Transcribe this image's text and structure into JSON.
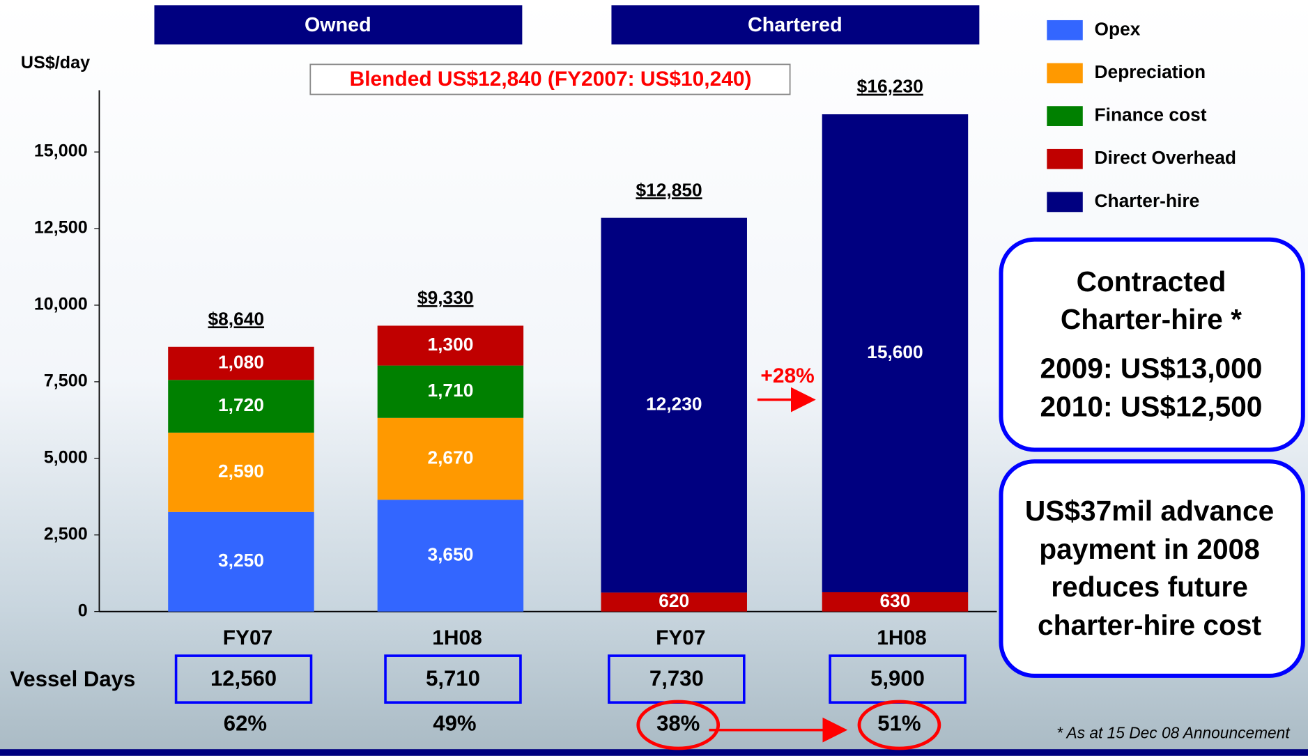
{
  "chart_data": {
    "type": "bar",
    "stacked": true,
    "y_label": "US$/day",
    "groups": [
      "Owned",
      "Chartered"
    ],
    "categories": [
      "FY07",
      "1H08",
      "FY07",
      "1H08"
    ],
    "series": [
      {
        "name": "Opex",
        "color": "#3366ff",
        "values": [
          3250,
          3650,
          null,
          null
        ],
        "value_labels": [
          "3,250",
          "3,650",
          null,
          null
        ]
      },
      {
        "name": "Depreciation",
        "color": "#ff9900",
        "values": [
          2590,
          2670,
          null,
          null
        ],
        "value_labels": [
          "2,590",
          "2,670",
          null,
          null
        ]
      },
      {
        "name": "Finance cost",
        "color": "#008000",
        "values": [
          1720,
          1710,
          null,
          null
        ],
        "value_labels": [
          "1,720",
          "1,710",
          null,
          null
        ]
      },
      {
        "name": "Direct Overhead",
        "color": "#c00000",
        "values": [
          1080,
          1300,
          620,
          630
        ],
        "value_labels": [
          "1,080",
          "1,300",
          "620",
          "630"
        ]
      },
      {
        "name": "Charter-hire",
        "color": "#000080",
        "values": [
          null,
          null,
          12230,
          15600
        ],
        "value_labels": [
          null,
          null,
          "12,230",
          "15,600"
        ]
      }
    ],
    "totals": {
      "values": [
        8640,
        9330,
        12850,
        16230
      ],
      "value_labels": [
        "$8,640",
        "$9,330",
        "$12,850",
        "$16,230"
      ]
    },
    "ylim": [
      0,
      17000
    ],
    "yticks": [
      0,
      {
        "value": 2500,
        "label": "2,500"
      },
      {
        "value": 5000,
        "label": "5,000"
      },
      {
        "value": 7500,
        "label": "7,500"
      },
      {
        "value": 10000,
        "label": "10,000"
      },
      {
        "value": 12500,
        "label": "12,500"
      },
      {
        "value": 15000,
        "label": "15,000"
      }
    ],
    "annotations": {
      "blended": "Blended US$12,840 (FY2007: US$10,240)",
      "growth": "+28%"
    },
    "vessel_days": {
      "label": "Vessel Days",
      "values": [
        12560,
        5710,
        7730,
        5900
      ],
      "value_labels": [
        "12,560",
        "5,710",
        "7,730",
        "5,900"
      ]
    },
    "shares": {
      "values": [
        62,
        49,
        38,
        51
      ],
      "value_labels": [
        "62%",
        "49%",
        "38%",
        "51%"
      ]
    }
  },
  "notes": {
    "contracted": [
      "Contracted",
      "Charter-hire *",
      "2009: US$13,000",
      "2010: US$12,500"
    ],
    "advance": [
      "US$37mil advance",
      "payment in 2008",
      "reduces future",
      "charter-hire cost"
    ]
  },
  "footnote": "* As at 15 Dec 08 Announcement"
}
